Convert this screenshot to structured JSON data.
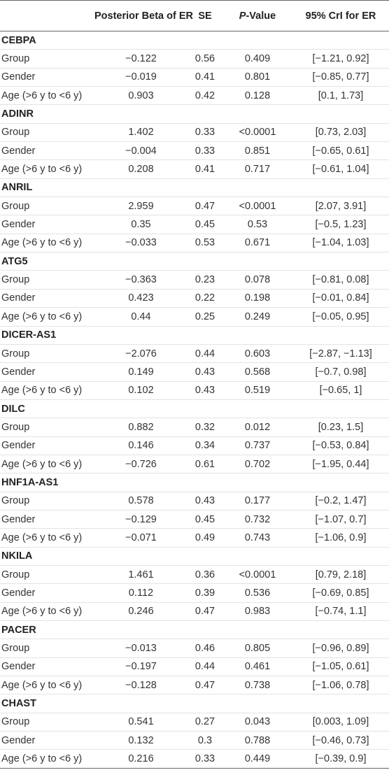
{
  "table": {
    "headers": {
      "col0": "",
      "col1": "Posterior Beta of ER",
      "col2": "SE",
      "col3_italic": "P",
      "col3_rest": "-Value",
      "col4": "95% CrI for ER"
    },
    "groups": [
      {
        "name": "CEBPA",
        "rows": [
          {
            "label": "Group",
            "beta": "−0.122",
            "se": "0.56",
            "p": "0.409",
            "cri": "[−1.21, 0.92]"
          },
          {
            "label": "Gender",
            "beta": "−0.019",
            "se": "0.41",
            "p": "0.801",
            "cri": "[−0.85, 0.77]"
          },
          {
            "label": "Age (>6 y to <6 y)",
            "beta": "0.903",
            "se": "0.42",
            "p": "0.128",
            "cri": "[0.1, 1.73]"
          }
        ]
      },
      {
        "name": "ADINR",
        "rows": [
          {
            "label": "Group",
            "beta": "1.402",
            "se": "0.33",
            "p": "<0.0001",
            "cri": "[0.73, 2.03]"
          },
          {
            "label": "Gender",
            "beta": "−0.004",
            "se": "0.33",
            "p": "0.851",
            "cri": "[−0.65, 0.61]"
          },
          {
            "label": "Age (>6 y to <6 y)",
            "beta": "0.208",
            "se": "0.41",
            "p": "0.717",
            "cri": "[−0.61, 1.04]"
          }
        ]
      },
      {
        "name": "ANRIL",
        "rows": [
          {
            "label": "Group",
            "beta": "2.959",
            "se": "0.47",
            "p": "<0.0001",
            "cri": "[2.07, 3.91]"
          },
          {
            "label": "Gender",
            "beta": "0.35",
            "se": "0.45",
            "p": "0.53",
            "cri": "[−0.5, 1.23]"
          },
          {
            "label": "Age (>6 y to <6 y)",
            "beta": "−0.033",
            "se": "0.53",
            "p": "0.671",
            "cri": "[−1.04, 1.03]"
          }
        ]
      },
      {
        "name": "ATG5",
        "rows": [
          {
            "label": "Group",
            "beta": "−0.363",
            "se": "0.23",
            "p": "0.078",
            "cri": "[−0.81, 0.08]"
          },
          {
            "label": "Gender",
            "beta": "0.423",
            "se": "0.22",
            "p": "0.198",
            "cri": "[−0.01, 0.84]"
          },
          {
            "label": "Age (>6 y to <6 y)",
            "beta": "0.44",
            "se": "0.25",
            "p": "0.249",
            "cri": "[−0.05, 0.95]"
          }
        ]
      },
      {
        "name": "DICER-AS1",
        "rows": [
          {
            "label": "Group",
            "beta": "−2.076",
            "se": "0.44",
            "p": "0.603",
            "cri": "[−2.87, −1.13]"
          },
          {
            "label": "Gender",
            "beta": "0.149",
            "se": "0.43",
            "p": "0.568",
            "cri": "[−0.7, 0.98]"
          },
          {
            "label": "Age (>6 y to <6 y)",
            "beta": "0.102",
            "se": "0.43",
            "p": "0.519",
            "cri": "[−0.65, 1]"
          }
        ]
      },
      {
        "name": "DILC",
        "rows": [
          {
            "label": "Group",
            "beta": "0.882",
            "se": "0.32",
            "p": "0.012",
            "cri": "[0.23, 1.5]"
          },
          {
            "label": "Gender",
            "beta": "0.146",
            "se": "0.34",
            "p": "0.737",
            "cri": "[−0.53, 0.84]"
          },
          {
            "label": "Age (>6 y to <6 y)",
            "beta": "−0.726",
            "se": "0.61",
            "p": "0.702",
            "cri": "[−1.95, 0.44]"
          }
        ]
      },
      {
        "name": "HNF1A-AS1",
        "rows": [
          {
            "label": "Group",
            "beta": "0.578",
            "se": "0.43",
            "p": "0.177",
            "cri": "[−0.2, 1.47]"
          },
          {
            "label": "Gender",
            "beta": "−0.129",
            "se": "0.45",
            "p": "0.732",
            "cri": "[−1.07, 0.7]"
          },
          {
            "label": "Age (>6 y to <6 y)",
            "beta": "−0.071",
            "se": "0.49",
            "p": "0.743",
            "cri": "[−1.06, 0.9]"
          }
        ]
      },
      {
        "name": "NKILA",
        "rows": [
          {
            "label": "Group",
            "beta": "1.461",
            "se": "0.36",
            "p": "<0.0001",
            "cri": "[0.79, 2.18]"
          },
          {
            "label": "Gender",
            "beta": "0.112",
            "se": "0.39",
            "p": "0.536",
            "cri": "[−0.69, 0.85]"
          },
          {
            "label": "Age (>6 y to <6 y)",
            "beta": "0.246",
            "se": "0.47",
            "p": "0.983",
            "cri": "[−0.74, 1.1]"
          }
        ]
      },
      {
        "name": "PACER",
        "rows": [
          {
            "label": "Group",
            "beta": "−0.013",
            "se": "0.46",
            "p": "0.805",
            "cri": "[−0.96, 0.89]"
          },
          {
            "label": "Gender",
            "beta": "−0.197",
            "se": "0.44",
            "p": "0.461",
            "cri": "[−1.05, 0.61]"
          },
          {
            "label": "Age (>6 y to <6 y)",
            "beta": "−0.128",
            "se": "0.47",
            "p": "0.738",
            "cri": "[−1.06, 0.78]"
          }
        ]
      },
      {
        "name": "CHAST",
        "rows": [
          {
            "label": "Group",
            "beta": "0.541",
            "se": "0.27",
            "p": "0.043",
            "cri": "[0.003, 1.09]"
          },
          {
            "label": "Gender",
            "beta": "0.132",
            "se": "0.3",
            "p": "0.788",
            "cri": "[−0.46, 0.73]"
          },
          {
            "label": "Age (>6 y to <6 y)",
            "beta": "0.216",
            "se": "0.33",
            "p": "0.449",
            "cri": "[−0.39, 0.9]"
          }
        ]
      }
    ]
  }
}
